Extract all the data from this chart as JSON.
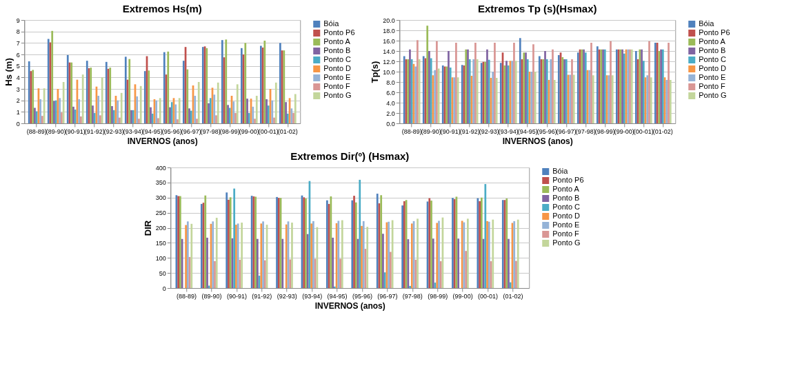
{
  "chart_data": [
    {
      "type": "bar",
      "title": "Extremos Hs(m)",
      "xlabel": "INVERNOS (anos)",
      "ylabel": "Hs (m)",
      "grid": "y",
      "legend": "right",
      "categories": [
        "(88-89)",
        "(89-90)",
        "(90-91)",
        "(91-92)",
        "(92-93)",
        "(93-94)",
        "(94-95)",
        "(95-96)",
        "(96-97)",
        "(97-98)",
        "(98-99)",
        "(99-00)",
        "(00-01)",
        "(01-02)"
      ],
      "ylim": [
        0,
        9
      ],
      "yticks": [
        0,
        1,
        2,
        3,
        4,
        5,
        6,
        7,
        8,
        9
      ],
      "series": [
        {
          "name": "Bóia",
          "color": "#4f81bd",
          "values": [
            5.4,
            7.35,
            5.95,
            5.45,
            5.35,
            5.8,
            4.55,
            6.2,
            5.45,
            6.65,
            7.25,
            6.55,
            6.75,
            7.0
          ]
        },
        {
          "name": "Ponto P6",
          "color": "#c0504d",
          "values": [
            4.55,
            7.05,
            5.3,
            4.8,
            4.75,
            3.8,
            5.85,
            4.25,
            6.65,
            6.7,
            5.75,
            6.0,
            6.6,
            6.35
          ]
        },
        {
          "name": "Ponto A",
          "color": "#9bbb59",
          "values": [
            4.65,
            8.05,
            5.3,
            4.85,
            4.85,
            5.6,
            4.6,
            6.25,
            4.7,
            6.55,
            7.3,
            7.0,
            7.2,
            6.35
          ]
        },
        {
          "name": "Ponto B",
          "color": "#8064a2",
          "values": [
            1.35,
            1.95,
            1.45,
            1.55,
            1.5,
            1.15,
            1.4,
            1.4,
            1.3,
            1.75,
            1.6,
            2.15,
            2.1,
            1.85
          ]
        },
        {
          "name": "Ponto C",
          "color": "#4bacc6",
          "values": [
            1.05,
            2.0,
            1.2,
            0.9,
            1.15,
            1.15,
            0.85,
            1.85,
            1.1,
            2.2,
            1.35,
            0.9,
            1.55,
            0.85
          ]
        },
        {
          "name": "Ponto D",
          "color": "#f79646",
          "values": [
            3.05,
            3.0,
            3.8,
            3.2,
            2.4,
            3.4,
            2.1,
            2.2,
            3.3,
            3.1,
            2.4,
            2.15,
            3.0,
            2.2
          ]
        },
        {
          "name": "Ponto E",
          "color": "#95b3d7",
          "values": [
            2.1,
            2.2,
            2.1,
            2.4,
            2.0,
            2.35,
            2.0,
            1.65,
            2.4,
            2.5,
            1.9,
            1.45,
            2.0,
            1.3
          ]
        },
        {
          "name": "Ponto F",
          "color": "#d99694",
          "values": [
            0.65,
            0.95,
            0.6,
            0.7,
            0.5,
            0.4,
            0.45,
            0.35,
            0.4,
            0.7,
            0.9,
            0.4,
            0.5,
            0.9
          ]
        },
        {
          "name": "Ponto G",
          "color": "#c3d69b",
          "values": [
            3.05,
            3.6,
            4.25,
            4.0,
            2.65,
            3.25,
            2.2,
            2.2,
            3.6,
            3.55,
            3.4,
            2.4,
            3.55,
            2.55
          ]
        }
      ]
    },
    {
      "type": "bar",
      "title": "Extremos Tp (s)(Hsmax)",
      "xlabel": "INVERNOS (anos)",
      "ylabel": "Tp(s)",
      "grid": "y",
      "legend": "right",
      "categories": [
        "(88-89)",
        "(89-90)",
        "(90-91)",
        "(91-92)",
        "(92-93)",
        "(93-94)",
        "(94-95)",
        "(95-96)",
        "(96-97)",
        "(97-98)",
        "(98-99)",
        "(99-00)",
        "(00-01)",
        "(01-02)"
      ],
      "ylim": [
        0,
        20
      ],
      "yticks": [
        {
          "value": 0,
          "label": "0.0"
        },
        {
          "value": 2,
          "label": "2.0"
        },
        {
          "value": 4,
          "label": "4.0"
        },
        {
          "value": 6,
          "label": "6.0"
        },
        {
          "value": 8,
          "label": "8.0"
        },
        {
          "value": 10,
          "label": "10.0"
        },
        {
          "value": 12,
          "label": "12.0"
        },
        {
          "value": 14,
          "label": "14.0"
        },
        {
          "value": 16,
          "label": "16.0"
        },
        {
          "value": 18,
          "label": "18.0"
        },
        {
          "value": 20,
          "label": "20.0"
        }
      ],
      "series": [
        {
          "name": "Bóia",
          "color": "#4f81bd",
          "values": [
            13.0,
            13.0,
            11.2,
            11.3,
            11.7,
            11.7,
            16.5,
            13.0,
            13.2,
            13.7,
            14.9,
            14.3,
            14.0,
            15.6
          ]
        },
        {
          "name": "Ponto P6",
          "color": "#c0504d",
          "values": [
            12.4,
            12.6,
            11.0,
            11.2,
            11.9,
            13.7,
            12.4,
            12.4,
            13.7,
            14.3,
            14.3,
            14.3,
            12.4,
            15.6
          ]
        },
        {
          "name": "Ponto A",
          "color": "#9bbb59",
          "values": [
            12.4,
            18.9,
            11.0,
            14.3,
            11.9,
            11.2,
            13.7,
            12.4,
            12.8,
            14.3,
            14.3,
            14.3,
            14.3,
            14.0
          ]
        },
        {
          "name": "Ponto B",
          "color": "#8064a2",
          "values": [
            14.3,
            14.0,
            14.0,
            14.3,
            14.3,
            12.1,
            13.7,
            14.0,
            12.4,
            14.3,
            14.3,
            14.3,
            14.3,
            14.3
          ]
        },
        {
          "name": "Ponto C",
          "color": "#4bacc6",
          "values": [
            12.4,
            12.6,
            10.8,
            12.4,
            12.3,
            11.2,
            12.4,
            12.4,
            12.4,
            13.7,
            14.3,
            13.5,
            12.1,
            14.3
          ]
        },
        {
          "name": "Ponto D",
          "color": "#f79646",
          "values": [
            11.5,
            9.3,
            8.9,
            9.2,
            8.8,
            12.1,
            10.0,
            8.4,
            9.4,
            10.3,
            9.3,
            14.3,
            8.9,
            8.9
          ]
        },
        {
          "name": "Ponto E",
          "color": "#95b3d7",
          "values": [
            11.0,
            10.3,
            8.9,
            12.4,
            10.0,
            12.1,
            10.0,
            12.4,
            9.4,
            10.3,
            9.3,
            14.3,
            9.3,
            8.4
          ]
        },
        {
          "name": "Ponto F",
          "color": "#d99694",
          "values": [
            16.1,
            15.9,
            15.6,
            15.6,
            15.6,
            15.6,
            15.3,
            14.3,
            12.4,
            15.6,
            15.9,
            14.3,
            15.9,
            15.6
          ]
        },
        {
          "name": "Ponto G",
          "color": "#c3d69b",
          "values": [
            12.4,
            10.6,
            8.9,
            12.4,
            8.8,
            12.1,
            10.0,
            8.4,
            9.4,
            9.3,
            9.3,
            14.3,
            8.9,
            8.4
          ]
        }
      ]
    },
    {
      "type": "bar",
      "title": "Extremos Dir(º) (Hsmax)",
      "xlabel": "INVERNOS (anos)",
      "ylabel": "DIR",
      "grid": "y",
      "legend": "right",
      "categories": [
        "(88-89)",
        "(89-90)",
        "(90-91)",
        "(91-92)",
        "(92-93)",
        "(93-94)",
        "(94-95)",
        "(95-96)",
        "(96-97)",
        "(97-98)",
        "(98-99)",
        "(99-00)",
        "(00-01)",
        "(01-02)"
      ],
      "ylim": [
        0,
        400
      ],
      "yticks": [
        0,
        50,
        100,
        150,
        200,
        250,
        300,
        350,
        400
      ],
      "series": [
        {
          "name": "Bóia",
          "color": "#4f81bd",
          "values": [
            308,
            279,
            317,
            306,
            302,
            307,
            291,
            291,
            313,
            274,
            287,
            299,
            298,
            292
          ]
        },
        {
          "name": "Ponto P6",
          "color": "#c0504d",
          "values": [
            305,
            283,
            293,
            304,
            299,
            301,
            279,
            306,
            281,
            288,
            298,
            295,
            288,
            292
          ]
        },
        {
          "name": "Ponto A",
          "color": "#9bbb59",
          "values": [
            305,
            307,
            301,
            303,
            299,
            297,
            304,
            284,
            308,
            292,
            290,
            303,
            300,
            297
          ]
        },
        {
          "name": "Ponto B",
          "color": "#8064a2",
          "values": [
            163,
            167,
            165,
            163,
            163,
            179,
            167,
            163,
            180,
            162,
            164,
            164,
            163,
            163
          ]
        },
        {
          "name": "Ponto C",
          "color": "#4bacc6",
          "values": [
            null,
            8,
            330,
            41,
            null,
            355,
            5,
            359,
            52,
            7,
            18,
            null,
            345,
            19
          ]
        },
        {
          "name": "Ponto D",
          "color": "#f79646",
          "values": [
            209,
            213,
            210,
            214,
            211,
            214,
            215,
            206,
            218,
            214,
            216,
            223,
            222,
            216
          ]
        },
        {
          "name": "Ponto E",
          "color": "#95b3d7",
          "values": [
            221,
            221,
            214,
            221,
            221,
            222,
            223,
            222,
            220,
            222,
            223,
            218,
            220,
            222
          ]
        },
        {
          "name": "Ponto F",
          "color": "#d99694",
          "values": [
            103,
            89,
            94,
            92,
            95,
            97,
            97,
            130,
            120,
            94,
            89,
            123,
            89,
            90
          ]
        },
        {
          "name": "Ponto G",
          "color": "#c3d69b",
          "values": [
            213,
            233,
            217,
            210,
            217,
            202,
            225,
            203,
            225,
            230,
            234,
            230,
            227,
            227
          ]
        }
      ]
    }
  ]
}
